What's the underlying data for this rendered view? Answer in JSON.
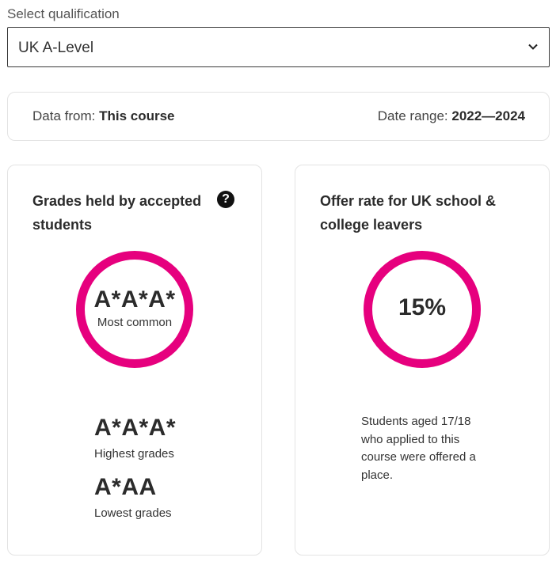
{
  "qualification": {
    "label": "Select qualification",
    "selected": "UK A-Level"
  },
  "info": {
    "data_from_label": "Data from:",
    "data_from_value": "This course",
    "date_range_label": "Date range:",
    "date_range_value": "2022—2024"
  },
  "grades_card": {
    "title": "Grades held by accepted students",
    "help_icon": "?",
    "most_common_grade": "A*A*A*",
    "most_common_label": "Most common",
    "highest_grade": "A*A*A*",
    "highest_label": "Highest grades",
    "lowest_grade": "A*AA",
    "lowest_label": "Lowest grades"
  },
  "offer_card": {
    "title": "Offer rate for UK school & college leavers",
    "rate": "15%",
    "rate_value": 15,
    "description": "Students aged 17/18 who applied to this course were offered a place."
  },
  "colors": {
    "ring": "#e6007e",
    "text": "#2b2b2b"
  }
}
